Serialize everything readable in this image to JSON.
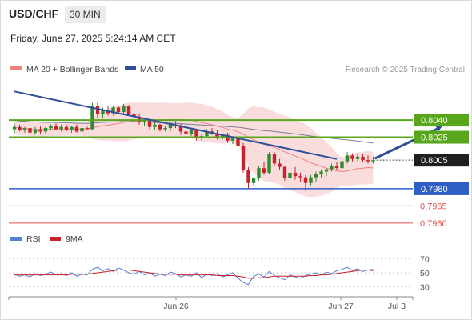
{
  "header": {
    "symbol": "USD/CHF",
    "timeframe": "30 MIN",
    "datetime": "Friday, June 27, 2025 5:24:14 AM CET",
    "credit": "Research © 2025 Trading Central"
  },
  "colors": {
    "up": "#2e8b2e",
    "down": "#c8232c",
    "ma20": "#f08080",
    "bollinger_fill": "#f7d2d2",
    "ma50": "#7a7f9a",
    "trendline": "#2f4f9a",
    "resistance": "#58a61c",
    "support": "#2f5fc4",
    "secondary_support": "#e05050",
    "rsi": "#5a7fd6",
    "rsi_ma": "#c8232c"
  },
  "chart_data": [
    {
      "type": "candlestick",
      "legend": [
        "MA 20 + Bollinger Bands",
        "MA 50"
      ],
      "x_tick_labels": [
        "Jun 26",
        "Jun 27",
        "Jul 3"
      ],
      "ylim": [
        0.7945,
        0.8075
      ],
      "last_price": 0.8005,
      "levels": [
        {
          "value": 0.804,
          "label": "0.8040",
          "kind": "resistance"
        },
        {
          "value": 0.8025,
          "label": "0.8025",
          "kind": "resistance"
        },
        {
          "value": 0.8005,
          "label": "0.8005",
          "kind": "last"
        },
        {
          "value": 0.798,
          "label": "0.7980",
          "kind": "support"
        },
        {
          "value": 0.7965,
          "label": "0.7965",
          "kind": "secondary_support"
        },
        {
          "value": 0.795,
          "label": "0.7950",
          "kind": "secondary_support"
        }
      ],
      "trendline": {
        "from": [
          0,
          0.8065
        ],
        "to": [
          62,
          0.8006
        ]
      },
      "forecast_arrow": {
        "from": [
          69,
          0.8005
        ],
        "to": [
          80,
          0.8039
        ]
      },
      "candles": [
        [
          0.8032,
          0.8037,
          0.8029,
          0.8034
        ],
        [
          0.8034,
          0.8036,
          0.803,
          0.8031
        ],
        [
          0.8031,
          0.8034,
          0.8029,
          0.8033
        ],
        [
          0.8033,
          0.8035,
          0.8027,
          0.8029
        ],
        [
          0.8029,
          0.8034,
          0.8027,
          0.8032
        ],
        [
          0.8032,
          0.8035,
          0.8028,
          0.803
        ],
        [
          0.803,
          0.8034,
          0.8028,
          0.8033
        ],
        [
          0.8033,
          0.8036,
          0.8031,
          0.8035
        ],
        [
          0.8035,
          0.8037,
          0.8031,
          0.8032
        ],
        [
          0.8032,
          0.8036,
          0.803,
          0.8034
        ],
        [
          0.8034,
          0.8036,
          0.803,
          0.8031
        ],
        [
          0.8031,
          0.8035,
          0.8029,
          0.8034
        ],
        [
          0.8034,
          0.8036,
          0.8029,
          0.803
        ],
        [
          0.803,
          0.8035,
          0.8029,
          0.8033
        ],
        [
          0.8033,
          0.8034,
          0.8032,
          0.8032
        ],
        [
          0.8032,
          0.8055,
          0.8031,
          0.8052
        ],
        [
          0.8052,
          0.8056,
          0.8042,
          0.8045
        ],
        [
          0.8045,
          0.8051,
          0.8042,
          0.8049
        ],
        [
          0.8049,
          0.8052,
          0.8044,
          0.8046
        ],
        [
          0.8046,
          0.8053,
          0.8044,
          0.8051
        ],
        [
          0.8051,
          0.8053,
          0.8045,
          0.8047
        ],
        [
          0.8047,
          0.8054,
          0.8045,
          0.8052
        ],
        [
          0.8052,
          0.8053,
          0.8044,
          0.8045
        ],
        [
          0.8045,
          0.8049,
          0.804,
          0.8043
        ],
        [
          0.8043,
          0.8045,
          0.8036,
          0.8038
        ],
        [
          0.8038,
          0.8042,
          0.8035,
          0.804
        ],
        [
          0.804,
          0.8041,
          0.8032,
          0.8034
        ],
        [
          0.8034,
          0.8038,
          0.8031,
          0.8036
        ],
        [
          0.8036,
          0.8037,
          0.803,
          0.8032
        ],
        [
          0.8032,
          0.8035,
          0.803,
          0.8033
        ],
        [
          0.8033,
          0.8038,
          0.803,
          0.8036
        ],
        [
          0.8036,
          0.8039,
          0.8033,
          0.8035
        ],
        [
          0.8035,
          0.8037,
          0.8027,
          0.803
        ],
        [
          0.803,
          0.8033,
          0.8025,
          0.8028
        ],
        [
          0.8028,
          0.8033,
          0.8026,
          0.8031
        ],
        [
          0.8031,
          0.8032,
          0.8022,
          0.8024
        ],
        [
          0.8024,
          0.8028,
          0.8022,
          0.8026
        ],
        [
          0.8026,
          0.8032,
          0.8024,
          0.803
        ],
        [
          0.803,
          0.8033,
          0.8027,
          0.8028
        ],
        [
          0.8028,
          0.8031,
          0.8023,
          0.8025
        ],
        [
          0.8025,
          0.8028,
          0.8023,
          0.8027
        ],
        [
          0.8027,
          0.8029,
          0.802,
          0.8022
        ],
        [
          0.8022,
          0.8026,
          0.8019,
          0.8024
        ],
        [
          0.8024,
          0.8025,
          0.8015,
          0.8017
        ],
        [
          0.8017,
          0.802,
          0.7994,
          0.7996
        ],
        [
          0.7996,
          0.7999,
          0.798,
          0.7985
        ],
        [
          0.7985,
          0.799,
          0.7983,
          0.7989
        ],
        [
          0.7989,
          0.8,
          0.7987,
          0.7998
        ],
        [
          0.7998,
          0.8003,
          0.7992,
          0.7994
        ],
        [
          0.7994,
          0.8012,
          0.7993,
          0.801
        ],
        [
          0.801,
          0.8012,
          0.8,
          0.8002
        ],
        [
          0.8002,
          0.8006,
          0.7996,
          0.7999
        ],
        [
          0.7999,
          0.8,
          0.7987,
          0.7989
        ],
        [
          0.7989,
          0.7996,
          0.7986,
          0.7994
        ],
        [
          0.7994,
          0.7999,
          0.7988,
          0.7991
        ],
        [
          0.7991,
          0.7994,
          0.7986,
          0.799
        ],
        [
          0.799,
          0.7992,
          0.7978,
          0.7985
        ],
        [
          0.7985,
          0.7992,
          0.7983,
          0.799
        ],
        [
          0.799,
          0.7995,
          0.7986,
          0.7993
        ],
        [
          0.7993,
          0.7997,
          0.799,
          0.7995
        ],
        [
          0.7995,
          0.7998,
          0.7991,
          0.7997
        ],
        [
          0.7997,
          0.8002,
          0.7995,
          0.8
        ],
        [
          0.8,
          0.8003,
          0.7996,
          0.7998
        ],
        [
          0.7998,
          0.8005,
          0.7996,
          0.8004
        ],
        [
          0.8004,
          0.8012,
          0.8002,
          0.8009
        ],
        [
          0.8009,
          0.8011,
          0.8004,
          0.8006
        ],
        [
          0.8006,
          0.8011,
          0.8004,
          0.8008
        ],
        [
          0.8008,
          0.801,
          0.8003,
          0.8005
        ],
        [
          0.8005,
          0.8009,
          0.8002,
          0.8004
        ],
        [
          0.8004,
          0.8008,
          0.8002,
          0.8005
        ]
      ]
    },
    {
      "type": "line",
      "legend": [
        "RSI",
        "9MA"
      ],
      "ylim": [
        20,
        80
      ],
      "y_ticks": [
        70,
        50,
        30
      ],
      "series": [
        {
          "name": "RSI",
          "values": [
            48,
            45,
            47,
            44,
            49,
            46,
            48,
            51,
            47,
            49,
            46,
            50,
            45,
            48,
            47,
            55,
            58,
            53,
            56,
            52,
            57,
            54,
            50,
            48,
            52,
            47,
            50,
            45,
            48,
            46,
            51,
            49,
            44,
            47,
            45,
            50,
            43,
            48,
            46,
            49,
            44,
            47,
            50,
            42,
            36,
            33,
            45,
            48,
            44,
            52,
            46,
            43,
            40,
            47,
            44,
            42,
            46,
            48,
            50,
            47,
            51,
            49,
            53,
            55,
            58,
            53,
            56,
            52,
            54,
            55
          ]
        },
        {
          "name": "9MA",
          "values": [
            47,
            47,
            47,
            47,
            47,
            47,
            47,
            47,
            47,
            47,
            47,
            48,
            48,
            48,
            48,
            49,
            50,
            51,
            52,
            53,
            54,
            54,
            54,
            53,
            52,
            51,
            50,
            49,
            48,
            48,
            48,
            48,
            47,
            47,
            47,
            47,
            47,
            47,
            47,
            46,
            46,
            46,
            46,
            45,
            44,
            42,
            42,
            43,
            43,
            44,
            45,
            45,
            45,
            45,
            45,
            45,
            45,
            46,
            46,
            47,
            47,
            48,
            49,
            50,
            51,
            52,
            53,
            54,
            54,
            53
          ]
        }
      ]
    }
  ]
}
